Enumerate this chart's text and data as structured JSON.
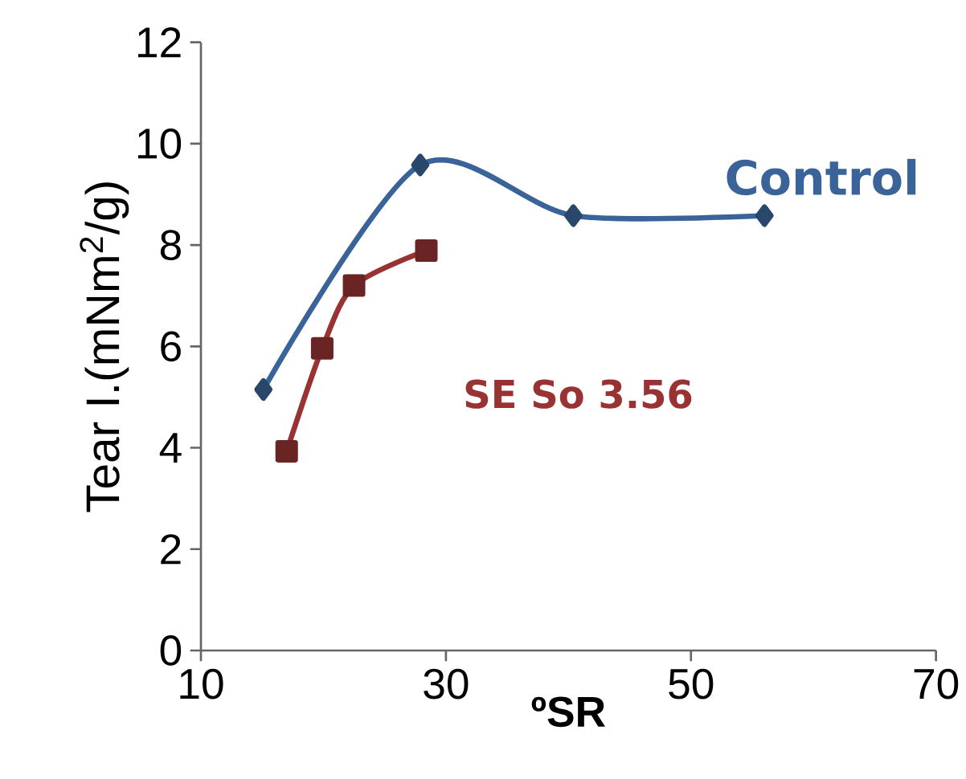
{
  "chart_data": {
    "type": "line",
    "xlabel": "ºSR",
    "ylabel": "Tear I.(mNm$^{2}$/g)",
    "xlim": [
      10,
      70
    ],
    "xticks": [
      10,
      30,
      50,
      70
    ],
    "ylim": [
      0,
      12
    ],
    "yticks": [
      0,
      2,
      4,
      6,
      8,
      10,
      12
    ],
    "grid": false,
    "legend": false,
    "series": [
      {
        "name": "Control",
        "color": "#3a6499",
        "marker": "diamond",
        "x": [
          15.1,
          27.9,
          40.4,
          56.0
        ],
        "values": [
          5.15,
          9.58,
          8.58,
          8.58
        ]
      },
      {
        "name": "SE  So 3.56",
        "color": "#993333",
        "marker": "square",
        "x": [
          17.0,
          19.9,
          22.5,
          28.4
        ],
        "values": [
          3.93,
          5.96,
          7.2,
          7.89
        ]
      }
    ]
  }
}
